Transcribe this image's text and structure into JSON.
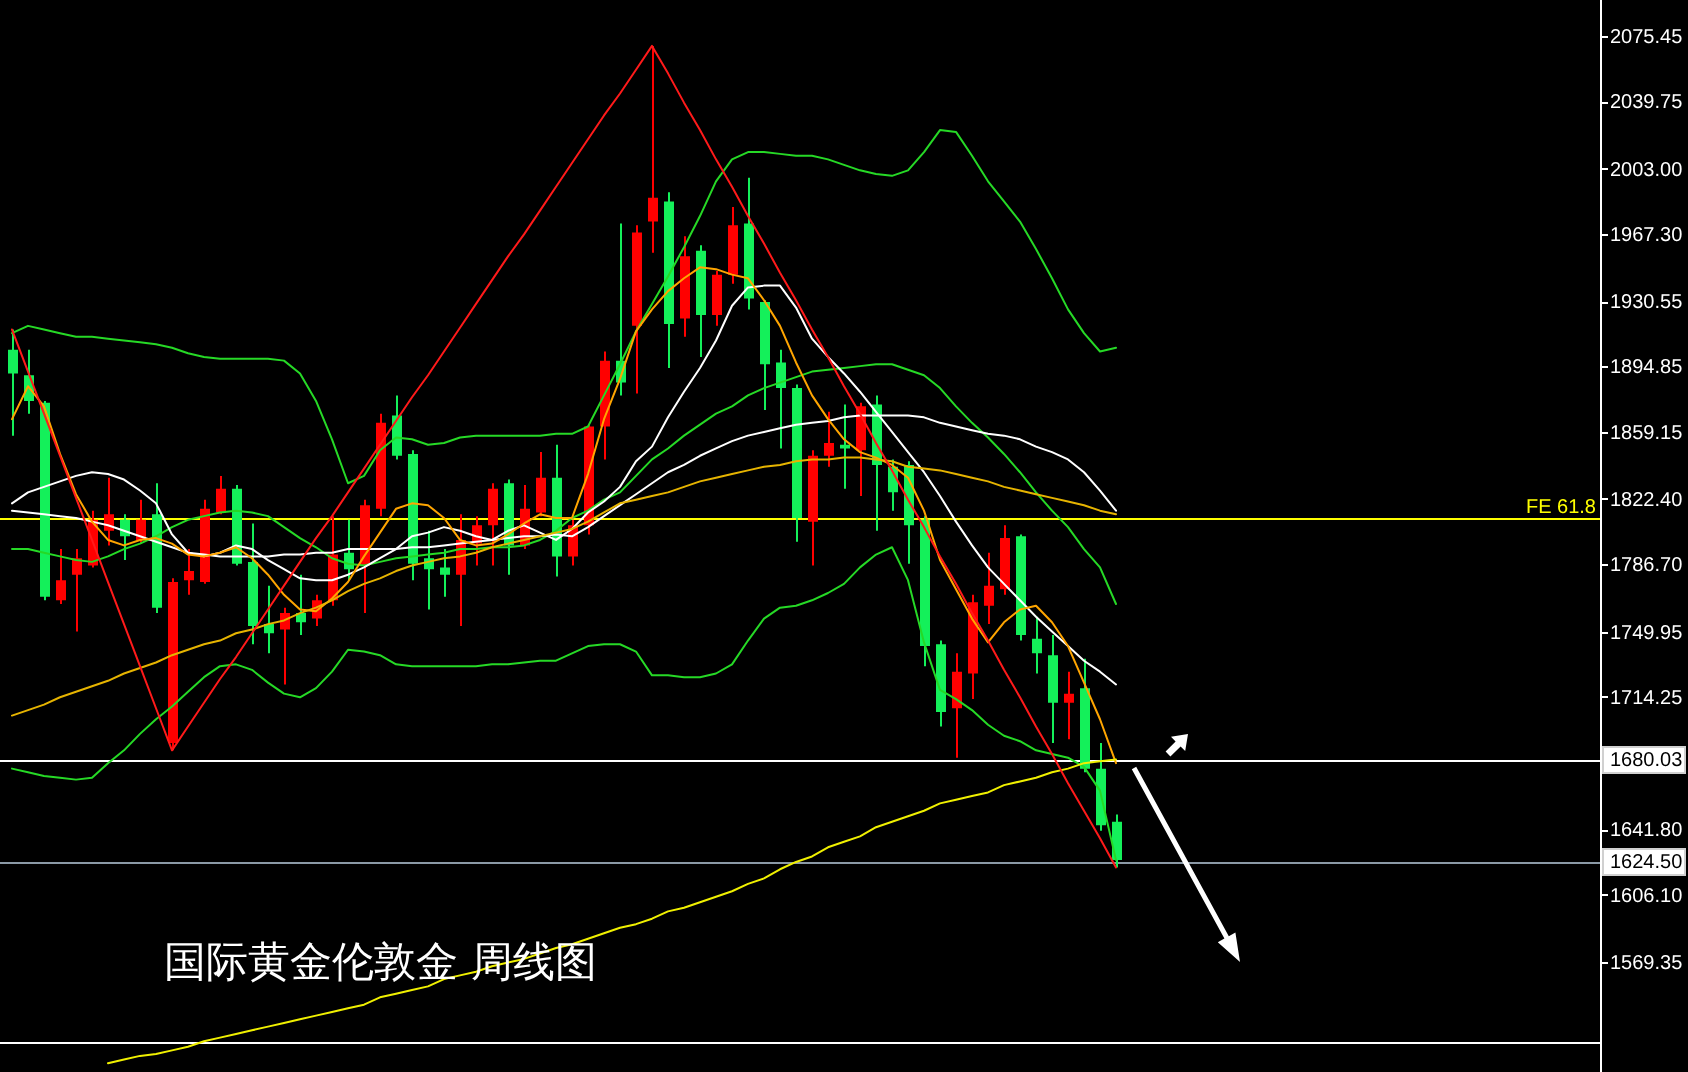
{
  "chart_data": {
    "type": "candlestick",
    "title": "国际黄金伦敦金 周线图",
    "categories": [
      null,
      null,
      null,
      null,
      null,
      null,
      null,
      null,
      null,
      null,
      null,
      null,
      null,
      null,
      null,
      null,
      null,
      null,
      null,
      null,
      null,
      null,
      null,
      null,
      null,
      null,
      null,
      null,
      null,
      null,
      null,
      null,
      null,
      null,
      null,
      null,
      null,
      null,
      null,
      null,
      null,
      null,
      null,
      null,
      null,
      null,
      null,
      null,
      null,
      null,
      null,
      null,
      null,
      null,
      null,
      null,
      null,
      null,
      null,
      null,
      null,
      null,
      null,
      null,
      null,
      null,
      null,
      null,
      null,
      null
    ],
    "ohlc": [
      [
        1904,
        1915,
        1857,
        1891
      ],
      [
        1890,
        1904,
        1869,
        1876
      ],
      [
        1875,
        1876,
        1767,
        1769
      ],
      [
        1767,
        1795,
        1765,
        1778
      ],
      [
        1781,
        1795,
        1750,
        1790
      ],
      [
        1786,
        1816,
        1785,
        1811
      ],
      [
        1805,
        1834,
        1797,
        1814
      ],
      [
        1811,
        1814,
        1789,
        1802
      ],
      [
        1800,
        1822,
        1798,
        1811
      ],
      [
        1814,
        1831,
        1760,
        1763
      ],
      [
        1689,
        1779,
        1685,
        1777
      ],
      [
        1778,
        1795,
        1770,
        1783
      ],
      [
        1777,
        1822,
        1776,
        1817
      ],
      [
        1815,
        1835,
        1814,
        1828
      ],
      [
        1828,
        1830,
        1786,
        1787
      ],
      [
        1788,
        1809,
        1743,
        1753
      ],
      [
        1754,
        1775,
        1738,
        1749
      ],
      [
        1751,
        1763,
        1721,
        1760
      ],
      [
        1760,
        1781,
        1748,
        1755
      ],
      [
        1757,
        1770,
        1753,
        1767
      ],
      [
        1767,
        1813,
        1764,
        1792
      ],
      [
        1793,
        1811,
        1778,
        1784
      ],
      [
        1786,
        1822,
        1760,
        1819
      ],
      [
        1817,
        1869,
        1813,
        1864
      ],
      [
        1868,
        1879,
        1844,
        1846
      ],
      [
        1847,
        1849,
        1778,
        1787
      ],
      [
        1790,
        1805,
        1762,
        1784
      ],
      [
        1785,
        1795,
        1769,
        1781
      ],
      [
        1781,
        1814,
        1753,
        1800
      ],
      [
        1798,
        1813,
        1786,
        1808
      ],
      [
        1808,
        1831,
        1786,
        1828
      ],
      [
        1831,
        1833,
        1781,
        1797
      ],
      [
        1797,
        1830,
        1795,
        1817
      ],
      [
        1815,
        1848,
        1813,
        1834
      ],
      [
        1834,
        1852,
        1780,
        1791
      ],
      [
        1791,
        1811,
        1786,
        1808
      ],
      [
        1808,
        1863,
        1803,
        1862
      ],
      [
        1862,
        1903,
        1844,
        1898
      ],
      [
        1898,
        1973,
        1879,
        1886
      ],
      [
        1917,
        1972,
        1880,
        1968
      ],
      [
        1974,
        2070,
        1957,
        1987
      ],
      [
        1985,
        1990,
        1894,
        1918
      ],
      [
        1921,
        1966,
        1911,
        1955
      ],
      [
        1958,
        1961,
        1900,
        1923
      ],
      [
        1923,
        1947,
        1917,
        1945
      ],
      [
        1945,
        1982,
        1940,
        1972
      ],
      [
        1973,
        1998,
        1926,
        1932
      ],
      [
        1930,
        1931,
        1871,
        1896
      ],
      [
        1897,
        1904,
        1850,
        1883
      ],
      [
        1883,
        1885,
        1799,
        1812
      ],
      [
        1810,
        1849,
        1786,
        1846
      ],
      [
        1846,
        1870,
        1840,
        1853
      ],
      [
        1852,
        1874,
        1828,
        1850
      ],
      [
        1849,
        1875,
        1824,
        1873
      ],
      [
        1874,
        1879,
        1805,
        1841
      ],
      [
        1840,
        1844,
        1816,
        1826
      ],
      [
        1841,
        1843,
        1787,
        1808
      ],
      [
        1811,
        1813,
        1731,
        1742
      ],
      [
        1743,
        1745,
        1698,
        1706
      ],
      [
        1708,
        1738,
        1681,
        1728
      ],
      [
        1727,
        1770,
        1713,
        1766
      ],
      [
        1764,
        1793,
        1754,
        1775
      ],
      [
        1773,
        1808,
        1770,
        1801
      ],
      [
        1802,
        1803,
        1745,
        1748
      ],
      [
        1746,
        1758,
        1727,
        1738
      ],
      [
        1737,
        1748,
        1689,
        1711
      ],
      [
        1711,
        1728,
        1691,
        1716
      ],
      [
        1719,
        1735,
        1673,
        1675
      ],
      [
        1675,
        1689,
        1641,
        1644
      ],
      [
        1646,
        1650,
        1621,
        1625
      ]
    ],
    "colors": [
      "#14f05a",
      "#14f05a",
      "#14f05a",
      "#ff0000",
      "#ff0000",
      "#ff0000",
      "#ff0000",
      "#14f05a",
      "#ff0000",
      "#14f05a",
      "#ff0000",
      "#ff0000",
      "#ff0000",
      "#ff0000",
      "#14f05a",
      "#14f05a",
      "#14f05a",
      "#ff0000",
      "#14f05a",
      "#ff0000",
      "#ff0000",
      "#14f05a",
      "#ff0000",
      "#ff0000",
      "#14f05a",
      "#14f05a",
      "#14f05a",
      "#14f05a",
      "#ff0000",
      "#ff0000",
      "#ff0000",
      "#14f05a",
      "#ff0000",
      "#ff0000",
      "#14f05a",
      "#ff0000",
      "#ff0000",
      "#ff0000",
      "#14f05a",
      "#ff0000",
      "#ff0000",
      "#14f05a",
      "#ff0000",
      "#14f05a",
      "#ff0000",
      "#ff0000",
      "#14f05a",
      "#14f05a",
      "#14f05a",
      "#14f05a",
      "#ff0000",
      "#ff0000",
      "#14f05a",
      "#ff0000",
      "#14f05a",
      "#14f05a",
      "#14f05a",
      "#14f05a",
      "#14f05a",
      "#ff0000",
      "#ff0000",
      "#ff0000",
      "#ff0000",
      "#14f05a",
      "#14f05a",
      "#14f05a",
      "#ff0000",
      "#14f05a",
      "#14f05a",
      "#14f05a"
    ],
    "ylim": [
      1509.2,
      2095.1
    ],
    "yticks": [
      2075.45,
      2039.75,
      {
        "value": 2003,
        "label": "2003.00"
      },
      {
        "value": 1967.3,
        "label": "1967.30"
      },
      1930.55,
      1894.85,
      1859.15,
      {
        "value": 1822.4,
        "label": "1822.40"
      },
      {
        "value": 1786.7,
        "label": "1786.70"
      },
      1749.95,
      1714.25,
      1680.03,
      {
        "value": 1641.8,
        "label": "1641.80"
      },
      {
        "value": 1624.5,
        "label": "1624.50"
      },
      {
        "value": 1606.1,
        "label": "1606.10"
      },
      1569.35
    ],
    "tick_labels": "y",
    "series": [
      {
        "type": "line",
        "color": "#26d926",
        "values": [
          1913,
          1917,
          1915,
          1913,
          1911,
          1911,
          1910,
          1909,
          1908,
          1907,
          1905,
          1902,
          1900,
          1899,
          1899,
          1899,
          1899,
          1898,
          1891,
          1876,
          1855,
          1831,
          1835,
          1849,
          1856,
          1855,
          1852,
          1853,
          1856,
          1857,
          1857,
          1857,
          1857,
          1857,
          1858,
          1858,
          1862,
          1879,
          1896,
          1914,
          1929,
          1944,
          1960,
          1977,
          1996,
          2008,
          2012,
          2012,
          2011,
          2010,
          2010,
          2008,
          2005,
          2002,
          2000,
          1999,
          2002,
          2012,
          2024,
          2023,
          2010,
          1996,
          1985,
          1974,
          1959,
          1943,
          1926,
          1913,
          1903,
          1905
        ]
      },
      {
        "type": "line",
        "color": "#26d926",
        "values": [
          1795,
          1795,
          1793,
          1791,
          1789,
          1788,
          1791,
          1795,
          1798,
          1802,
          1807,
          1811,
          1813,
          1815,
          1816,
          1815,
          1813,
          1807,
          1801,
          1796,
          1790,
          1787,
          1786,
          1788,
          1790,
          1791,
          1792,
          1793,
          1795,
          1795,
          1796,
          1796,
          1797,
          1800,
          1805,
          1812,
          1816,
          1822,
          1826,
          1835,
          1844,
          1850,
          1857,
          1863,
          1869,
          1873,
          1879,
          1883,
          1886,
          1889,
          1892,
          1893,
          1894,
          1895,
          1896,
          1896,
          1893,
          1890,
          1883,
          1873,
          1864,
          1856,
          1847,
          1837,
          1826,
          1816,
          1807,
          1795,
          1785,
          1765
        ]
      },
      {
        "type": "line",
        "color": "#26d926",
        "values": [
          1675,
          1673,
          1671,
          1670,
          1669,
          1670,
          1678,
          1685,
          1694,
          1702,
          1709,
          1717,
          1725,
          1731,
          1732,
          1729,
          1722,
          1716,
          1714,
          1719,
          1728,
          1740,
          1739,
          1737,
          1732,
          1731,
          1731,
          1731,
          1731,
          1731,
          1732,
          1732,
          1733,
          1734,
          1734,
          1738,
          1742,
          1743,
          1743,
          1739,
          1726,
          1726,
          1725,
          1725,
          1727,
          1732,
          1745,
          1757,
          1763,
          1764,
          1767,
          1771,
          1776,
          1785,
          1792,
          1796,
          1778,
          1744,
          1718,
          1713,
          1707,
          1699,
          1693,
          1690,
          1685,
          1683,
          1681,
          1676,
          1663,
          1625
        ]
      },
      {
        "type": "line",
        "color": "#ffffff",
        "values": [
          1820,
          1826,
          1829,
          1832,
          1835,
          1837,
          1836,
          1833,
          1827,
          1820,
          1803,
          1793,
          1791,
          1793,
          1797,
          1795,
          1789,
          1784,
          1779,
          1778,
          1778,
          1781,
          1785,
          1790,
          1795,
          1802,
          1804,
          1807,
          1805,
          1802,
          1800,
          1805,
          1808,
          1804,
          1800,
          1806,
          1815,
          1821,
          1829,
          1843,
          1851,
          1867,
          1881,
          1894,
          1909,
          1928,
          1938,
          1939,
          1939,
          1927,
          1910,
          1900,
          1891,
          1881,
          1870,
          1859,
          1848,
          1837,
          1824,
          1810,
          1797,
          1785,
          1776,
          1767,
          1758,
          1750,
          1742,
          1734,
          1728,
          1721
        ]
      },
      {
        "type": "line",
        "color": "#ffffff",
        "values": [
          1816,
          1815,
          1814,
          1813,
          1812,
          1810,
          1808,
          1805,
          1802,
          1799,
          1796,
          1793,
          1792,
          1791,
          1791,
          1791,
          1791,
          1792,
          1792,
          1793,
          1793,
          1795,
          1795,
          1795,
          1795,
          1796,
          1796,
          1797,
          1798,
          1799,
          1800,
          1801,
          1802,
          1802,
          1803,
          1802,
          1807,
          1813,
          1819,
          1825,
          1831,
          1837,
          1841,
          1846,
          1850,
          1854,
          1857,
          1859,
          1861,
          1863,
          1864,
          1865,
          1867,
          1868,
          1868,
          1868,
          1868,
          1867,
          1864,
          1862,
          1860,
          1858,
          1857,
          1855,
          1851,
          1848,
          1844,
          1837,
          1827,
          1816
        ]
      },
      {
        "type": "line",
        "color": "#ffa500",
        "values": [
          1866,
          1884,
          1873,
          1847,
          1825,
          1810,
          1800,
          1797,
          1800,
          1801,
          1798,
          1792,
          1791,
          1793,
          1796,
          1790,
          1781,
          1770,
          1762,
          1761,
          1768,
          1777,
          1791,
          1804,
          1817,
          1820,
          1819,
          1812,
          1800,
          1797,
          1798,
          1803,
          1809,
          1814,
          1812,
          1812,
          1836,
          1866,
          1888,
          1914,
          1926,
          1936,
          1943,
          1949,
          1948,
          1945,
          1943,
          1931,
          1917,
          1897,
          1879,
          1866,
          1855,
          1848,
          1845,
          1841,
          1834,
          1816,
          1789,
          1773,
          1757,
          1744,
          1755,
          1762,
          1764,
          1755,
          1742,
          1722,
          1702,
          1678
        ]
      },
      {
        "type": "line",
        "color": "#e6b400",
        "values": [
          1704,
          1707,
          1710,
          1714,
          1717,
          1720,
          1723,
          1727,
          1730,
          1733,
          1737,
          1740,
          1743,
          1745,
          1749,
          1751,
          1754,
          1756,
          1760,
          1763,
          1767,
          1772,
          1776,
          1779,
          1783,
          1786,
          1788,
          1790,
          1791,
          1793,
          1796,
          1798,
          1800,
          1802,
          1804,
          1806,
          1810,
          1815,
          1820,
          1822,
          1824,
          1826,
          1829,
          1832,
          1834,
          1836,
          1838,
          1840,
          1841,
          1843,
          1844,
          1844,
          1845,
          1845,
          1844,
          1843,
          1840,
          1839,
          1838,
          1836,
          1834,
          1832,
          1829,
          1827,
          1825,
          1823,
          1821,
          1819,
          1816,
          1814
        ]
      },
      {
        "type": "line",
        "color": "#f0f000",
        "values": [
          null,
          null,
          null,
          null,
          null,
          null,
          1514,
          1516,
          1518,
          1519,
          1521,
          1523,
          1526,
          1528,
          1530,
          1532,
          1534,
          1536,
          1538,
          1540,
          1542,
          1544,
          1546,
          1550,
          1552,
          1554,
          1556,
          1560,
          1562,
          1564,
          1567,
          1569,
          1571,
          1574,
          1577,
          1579,
          1582,
          1585,
          1588,
          1590,
          1593,
          1597,
          1599,
          1602,
          1605,
          1608,
          1612,
          1615,
          1620,
          1624,
          1627,
          1632,
          1635,
          1638,
          1643,
          1646,
          1649,
          1652,
          1656,
          1658,
          1660,
          1662,
          1666,
          1668,
          1670,
          1673,
          1675,
          1678,
          1679,
          1680
        ]
      },
      {
        "type": "line",
        "color": "#ff1a1a",
        "values": [
          1915,
          1892,
          1869,
          1846,
          1823,
          1800,
          1777,
          1754,
          1731,
          1708,
          1685,
          1698,
          1711,
          1724,
          1736,
          1749,
          1762,
          1775,
          1788,
          1801,
          1813,
          1826,
          1839,
          1852,
          1865,
          1878,
          1890,
          1903,
          1916,
          1929,
          1942,
          1955,
          1967,
          1980,
          1993,
          2006,
          2019,
          2032,
          2044,
          2057,
          2070,
          2055,
          2039,
          2024,
          2008,
          1993,
          1977,
          1962,
          1946,
          1931,
          1915,
          1900,
          1884,
          1869,
          1853,
          1838,
          1822,
          1807,
          1791,
          1776,
          1760,
          1745,
          1729,
          1714,
          1698,
          1683,
          1667,
          1652,
          1637,
          1621
        ]
      }
    ],
    "ref_lines": [
      {
        "axis": "y",
        "value": 1812,
        "label": "FE 61.8",
        "color": "#ffff00"
      },
      {
        "axis": "y",
        "value": 1680.03,
        "color": "#ffffff"
      },
      {
        "axis": "y",
        "value": 1624.5,
        "color": "#8b99a6"
      },
      {
        "axis": "y",
        "value": 1525.6,
        "color": "#ffffff"
      }
    ]
  }
}
